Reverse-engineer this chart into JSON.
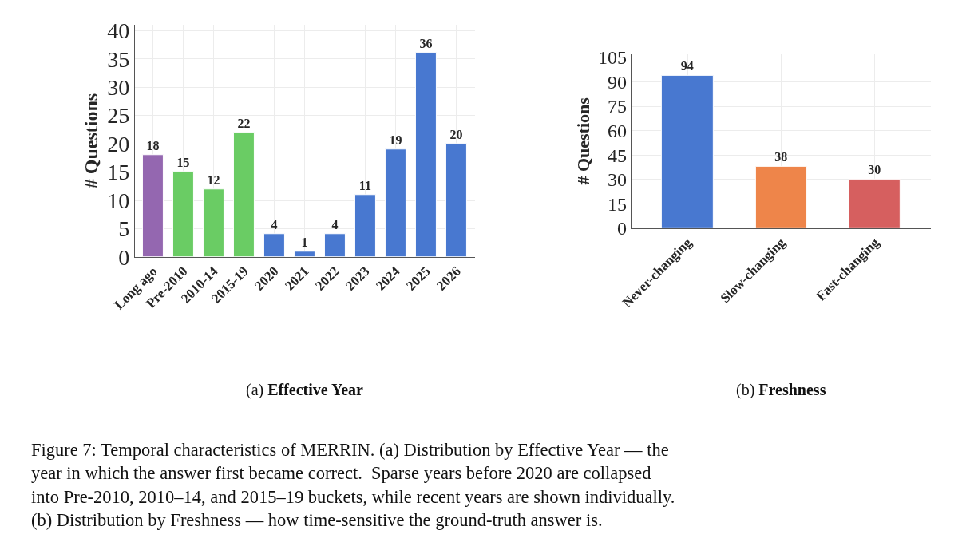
{
  "chart_data": [
    {
      "type": "bar",
      "title": "(a) Effective Year",
      "ylabel": "# Questions",
      "categories": [
        "Long ago",
        "Pre-2010",
        "2010-14",
        "2015-19",
        "2020",
        "2021",
        "2022",
        "2023",
        "2024",
        "2025",
        "2026"
      ],
      "values": [
        18,
        15,
        12,
        22,
        4,
        1,
        4,
        11,
        19,
        36,
        20
      ],
      "colors": [
        "#9467b0",
        "#6acc64",
        "#6acc64",
        "#6acc64",
        "#4878d0",
        "#4878d0",
        "#4878d0",
        "#4878d0",
        "#4878d0",
        "#4878d0",
        "#4878d0"
      ],
      "ylim": [
        0,
        41
      ],
      "yticks": [
        0,
        5,
        10,
        15,
        20,
        25,
        30,
        35,
        40
      ],
      "grid": true,
      "data_labels": true,
      "annotations": [
        "Figure 7: Temporal characteristics of MERRIN. (a) Distribution by Effective Year — the\nyear in which the answer first became correct.  Sparse years before 2020 are collapsed\ninto Pre-2010, 2010–14, and 2015–19 buckets, while recent years are shown individually.\n(b) Distribution by Freshness — how time-sensitive the ground-truth answer is."
      ]
    },
    {
      "type": "bar",
      "title": "(b) Freshness",
      "ylabel": "# Questions",
      "categories": [
        "Never-changing",
        "Slow-changing",
        "Fast-changing"
      ],
      "values": [
        94,
        38,
        30
      ],
      "colors": [
        "#4878d0",
        "#ee854a",
        "#d65f5f"
      ],
      "ylim": [
        0,
        107
      ],
      "yticks": [
        0,
        15,
        30,
        45,
        60,
        75,
        90,
        105
      ],
      "grid": true,
      "data_labels": true
    }
  ]
}
